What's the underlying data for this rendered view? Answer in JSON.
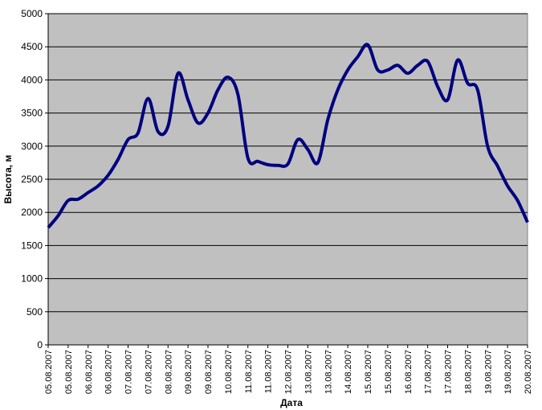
{
  "chart_data": {
    "type": "line",
    "x_label": "Дата",
    "y_label": "Высота, м",
    "categories": [
      "05.08.2007",
      null,
      "05.08.2007",
      null,
      "06.08.2007",
      null,
      "06.08.2007",
      null,
      "07.08.2007",
      null,
      "07.08.2007",
      null,
      "08.08.2007",
      null,
      "09.08.2007",
      null,
      "09.08.2007",
      null,
      "10.08.2007",
      null,
      "11.08.2007",
      null,
      "11.08.2007",
      null,
      "12.08.2007",
      null,
      "13.08.2007",
      null,
      "13.08.2007",
      null,
      "14.08.2007",
      null,
      "15.08.2007",
      null,
      "15.08.2007",
      null,
      "16.08.2007",
      null,
      "17.08.2007",
      null,
      "17.08.2007",
      null,
      "18.08.2007",
      null,
      "19.08.2007",
      null,
      "19.08.2007",
      null,
      "20.08.2007"
    ],
    "series": [
      {
        "name": "Высота",
        "color": "#000080",
        "values": [
          1770,
          1950,
          2180,
          2200,
          2300,
          2400,
          2560,
          2800,
          3100,
          3200,
          3720,
          3220,
          3300,
          4100,
          3700,
          3350,
          3500,
          3850,
          4040,
          3780,
          2820,
          2770,
          2720,
          2710,
          2730,
          3100,
          2950,
          2750,
          3400,
          3850,
          4150,
          4350,
          4530,
          4150,
          4150,
          4220,
          4100,
          4220,
          4280,
          3900,
          3700,
          4300,
          3950,
          3850,
          3000,
          2700,
          2400,
          2180,
          1850
        ]
      }
    ],
    "ylim": [
      0,
      5000
    ],
    "yticks": [
      0,
      500,
      1000,
      1500,
      2000,
      2500,
      3000,
      3500,
      4000,
      4500,
      5000
    ],
    "grid": true,
    "background": "#c0c0c0"
  }
}
